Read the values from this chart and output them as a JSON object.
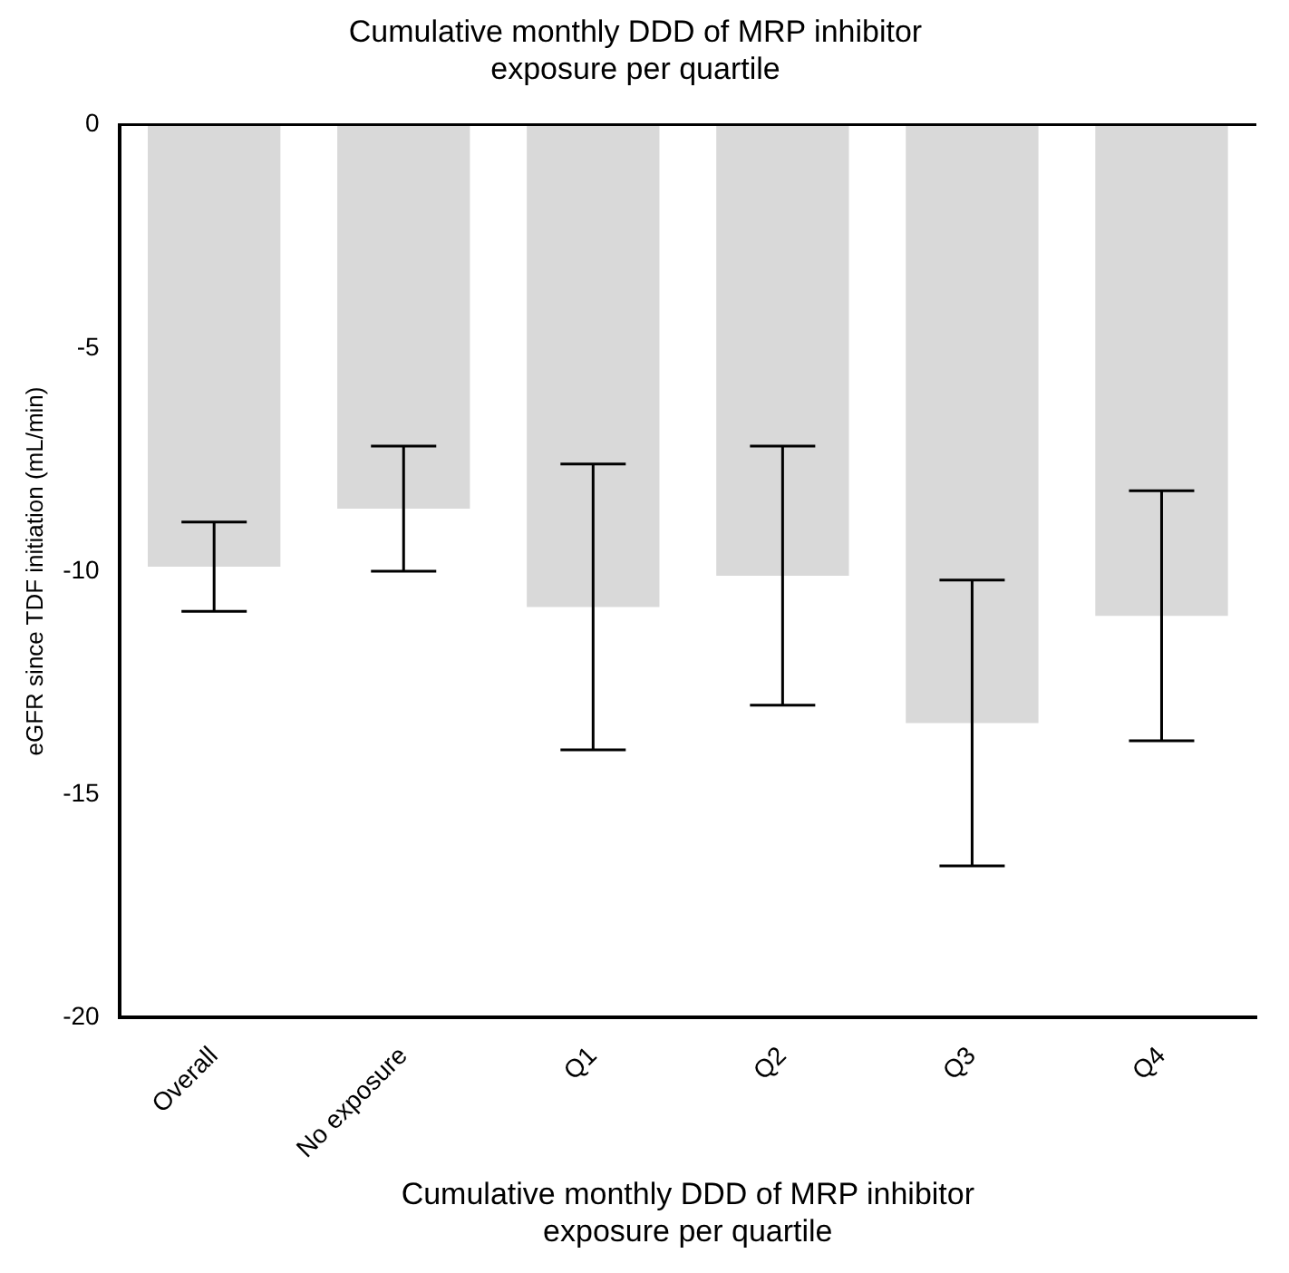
{
  "chart_data": {
    "type": "bar",
    "title": "Cumulative monthly DDD of MRP inhibitor exposure per quartile",
    "xlabel": "Cumulative monthly DDD of MRP inhibitor exposure per quartile",
    "ylabel": "eGFR since TDF initiation (mL/min)",
    "categories": [
      "Overall",
      "No exposure",
      "Q1",
      "Q2",
      "Q3",
      "Q4"
    ],
    "values": [
      -9.9,
      -8.6,
      -10.8,
      -10.1,
      -13.4,
      -11.0
    ],
    "errors": [
      1.0,
      1.4,
      3.2,
      2.9,
      3.2,
      2.8
    ],
    "color": "#d9d9d9",
    "ylim": [
      -20,
      0
    ],
    "yticks": [
      -20,
      -15,
      -10,
      -5,
      0
    ],
    "grid": false,
    "legend": false
  }
}
